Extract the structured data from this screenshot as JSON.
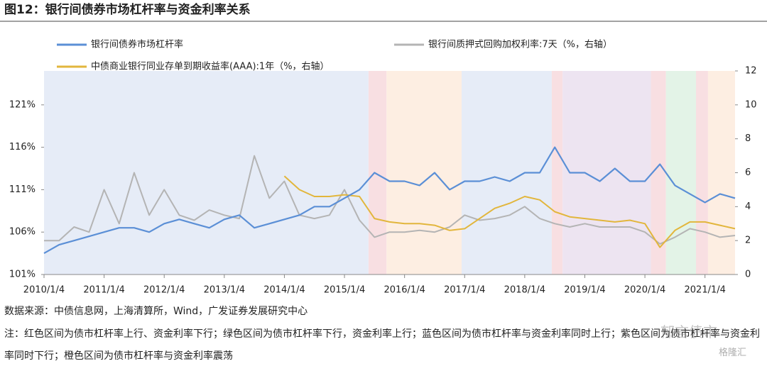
{
  "chart_data": {
    "type": "line",
    "title": "图12：银行间债券市场杠杆率与资金利率关系",
    "x": [
      2010.0,
      2010.25,
      2010.5,
      2010.75,
      2011.0,
      2011.25,
      2011.5,
      2011.75,
      2012.0,
      2012.25,
      2012.5,
      2012.75,
      2013.0,
      2013.25,
      2013.5,
      2013.75,
      2014.0,
      2014.25,
      2014.5,
      2014.75,
      2015.0,
      2015.25,
      2015.5,
      2015.75,
      2016.0,
      2016.25,
      2016.5,
      2016.75,
      2017.0,
      2017.25,
      2017.5,
      2017.75,
      2018.0,
      2018.25,
      2018.5,
      2018.75,
      2019.0,
      2019.25,
      2019.5,
      2019.75,
      2020.0,
      2020.25,
      2020.5,
      2020.75,
      2021.0,
      2021.25,
      2021.5
    ],
    "xlim": [
      2010.0,
      2021.5
    ],
    "xticks": [
      {
        "value": 2010,
        "label": "2010/1/4"
      },
      {
        "value": 2011,
        "label": "2011/1/4"
      },
      {
        "value": 2012,
        "label": "2012/1/4"
      },
      {
        "value": 2013,
        "label": "2013/1/4"
      },
      {
        "value": 2014,
        "label": "2014/1/4"
      },
      {
        "value": 2015,
        "label": "2015/1/4"
      },
      {
        "value": 2016,
        "label": "2016/1/4"
      },
      {
        "value": 2017,
        "label": "2017/1/4"
      },
      {
        "value": 2018,
        "label": "2018/1/4"
      },
      {
        "value": 2019,
        "label": "2019/1/4"
      },
      {
        "value": 2020,
        "label": "2020/1/4"
      },
      {
        "value": 2021,
        "label": "2021/1/4"
      }
    ],
    "ylim": [
      101,
      125
    ],
    "yticks": [
      {
        "value": 101,
        "label": "101%"
      },
      {
        "value": 106,
        "label": "106%"
      },
      {
        "value": 111,
        "label": "111%"
      },
      {
        "value": 116,
        "label": "116%"
      },
      {
        "value": 121,
        "label": "121%"
      }
    ],
    "y2lim": [
      0,
      12
    ],
    "y2ticks": [
      0,
      2,
      4,
      6,
      8,
      10,
      12
    ],
    "series": [
      {
        "name": "银行间债券市场杠杆率",
        "color": "#5b8fd6",
        "values": [
          103.5,
          104.5,
          105,
          105.5,
          106,
          106.5,
          106.5,
          106,
          107,
          107.5,
          107,
          106.5,
          107.5,
          108,
          106.5,
          107,
          107.5,
          108,
          109,
          109,
          110,
          111,
          113,
          112,
          112,
          111.5,
          113,
          111,
          112,
          112,
          112.5,
          112,
          113,
          113,
          116,
          113,
          113,
          112,
          113.5,
          112,
          112,
          114,
          111.5,
          110.5,
          109.5,
          110.5,
          110
        ]
      },
      {
        "name": "银行间质押式回购加权利率:7天（%，右轴）",
        "color": "#b4b4b4",
        "axis": "y2",
        "values": [
          2,
          2,
          2.8,
          2.5,
          5,
          3,
          6,
          3.5,
          5,
          3.5,
          3.2,
          3.8,
          3.5,
          3.3,
          7,
          4.5,
          5.5,
          3.5,
          3.3,
          3.5,
          5,
          3.2,
          2.2,
          2.5,
          2.5,
          2.6,
          2.5,
          2.8,
          3.5,
          3.2,
          3.3,
          3.5,
          4,
          3.3,
          3,
          2.8,
          3,
          2.8,
          2.8,
          2.8,
          2.5,
          1.8,
          2.2,
          2.7,
          2.5,
          2.2,
          2.3
        ]
      },
      {
        "name": "中债商业银行同业存单到期收益率(AAA):1年（%，右轴）",
        "color": "#e2b63c",
        "axis": "y2",
        "values": [
          null,
          null,
          null,
          null,
          null,
          null,
          null,
          null,
          null,
          null,
          null,
          null,
          null,
          null,
          null,
          null,
          5.8,
          5.0,
          4.6,
          4.6,
          4.7,
          4.6,
          3.3,
          3.1,
          3.0,
          3.0,
          2.9,
          2.6,
          2.7,
          3.3,
          3.9,
          4.2,
          4.6,
          4.4,
          3.7,
          3.4,
          3.3,
          3.2,
          3.1,
          3.2,
          3.0,
          1.6,
          2.6,
          3.1,
          3.1,
          2.9,
          2.7
        ]
      }
    ],
    "regions": [
      {
        "x": [
          2010.0,
          2015.4
        ],
        "color": "#e6ecf7"
      },
      {
        "x": [
          2015.4,
          2015.7
        ],
        "color": "#f8dfe2"
      },
      {
        "x": [
          2015.7,
          2016.95
        ],
        "color": "#fdeee2"
      },
      {
        "x": [
          2016.95,
          2018.45
        ],
        "color": "#e6ecf7"
      },
      {
        "x": [
          2018.45,
          2018.63
        ],
        "color": "#f8dfe2"
      },
      {
        "x": [
          2018.63,
          2020.1
        ],
        "color": "#ede4f1"
      },
      {
        "x": [
          2020.1,
          2020.35
        ],
        "color": "#f8dfe2"
      },
      {
        "x": [
          2020.35,
          2020.85
        ],
        "color": "#e3f3e7"
      },
      {
        "x": [
          2020.85,
          2021.05
        ],
        "color": "#f8dfe2"
      },
      {
        "x": [
          2021.05,
          2021.5
        ],
        "color": "#fdeee2"
      }
    ],
    "source": "数据来源：中债信息网，上海清算所，Wind，广发证券发展研究中心",
    "note": "注：红色区间为债市杠杆率上行、资金利率下行；绿色区间为债市杠杆率下行，资金利率上行；蓝色区间为债市杠杆率与资金利率同时上行；紫色区间为债市杠杆率与资金利率同时下行；橙色区间为债市杠杆率与资金利率震荡",
    "watermark": [
      "郁言债市",
      "格隆汇"
    ]
  }
}
